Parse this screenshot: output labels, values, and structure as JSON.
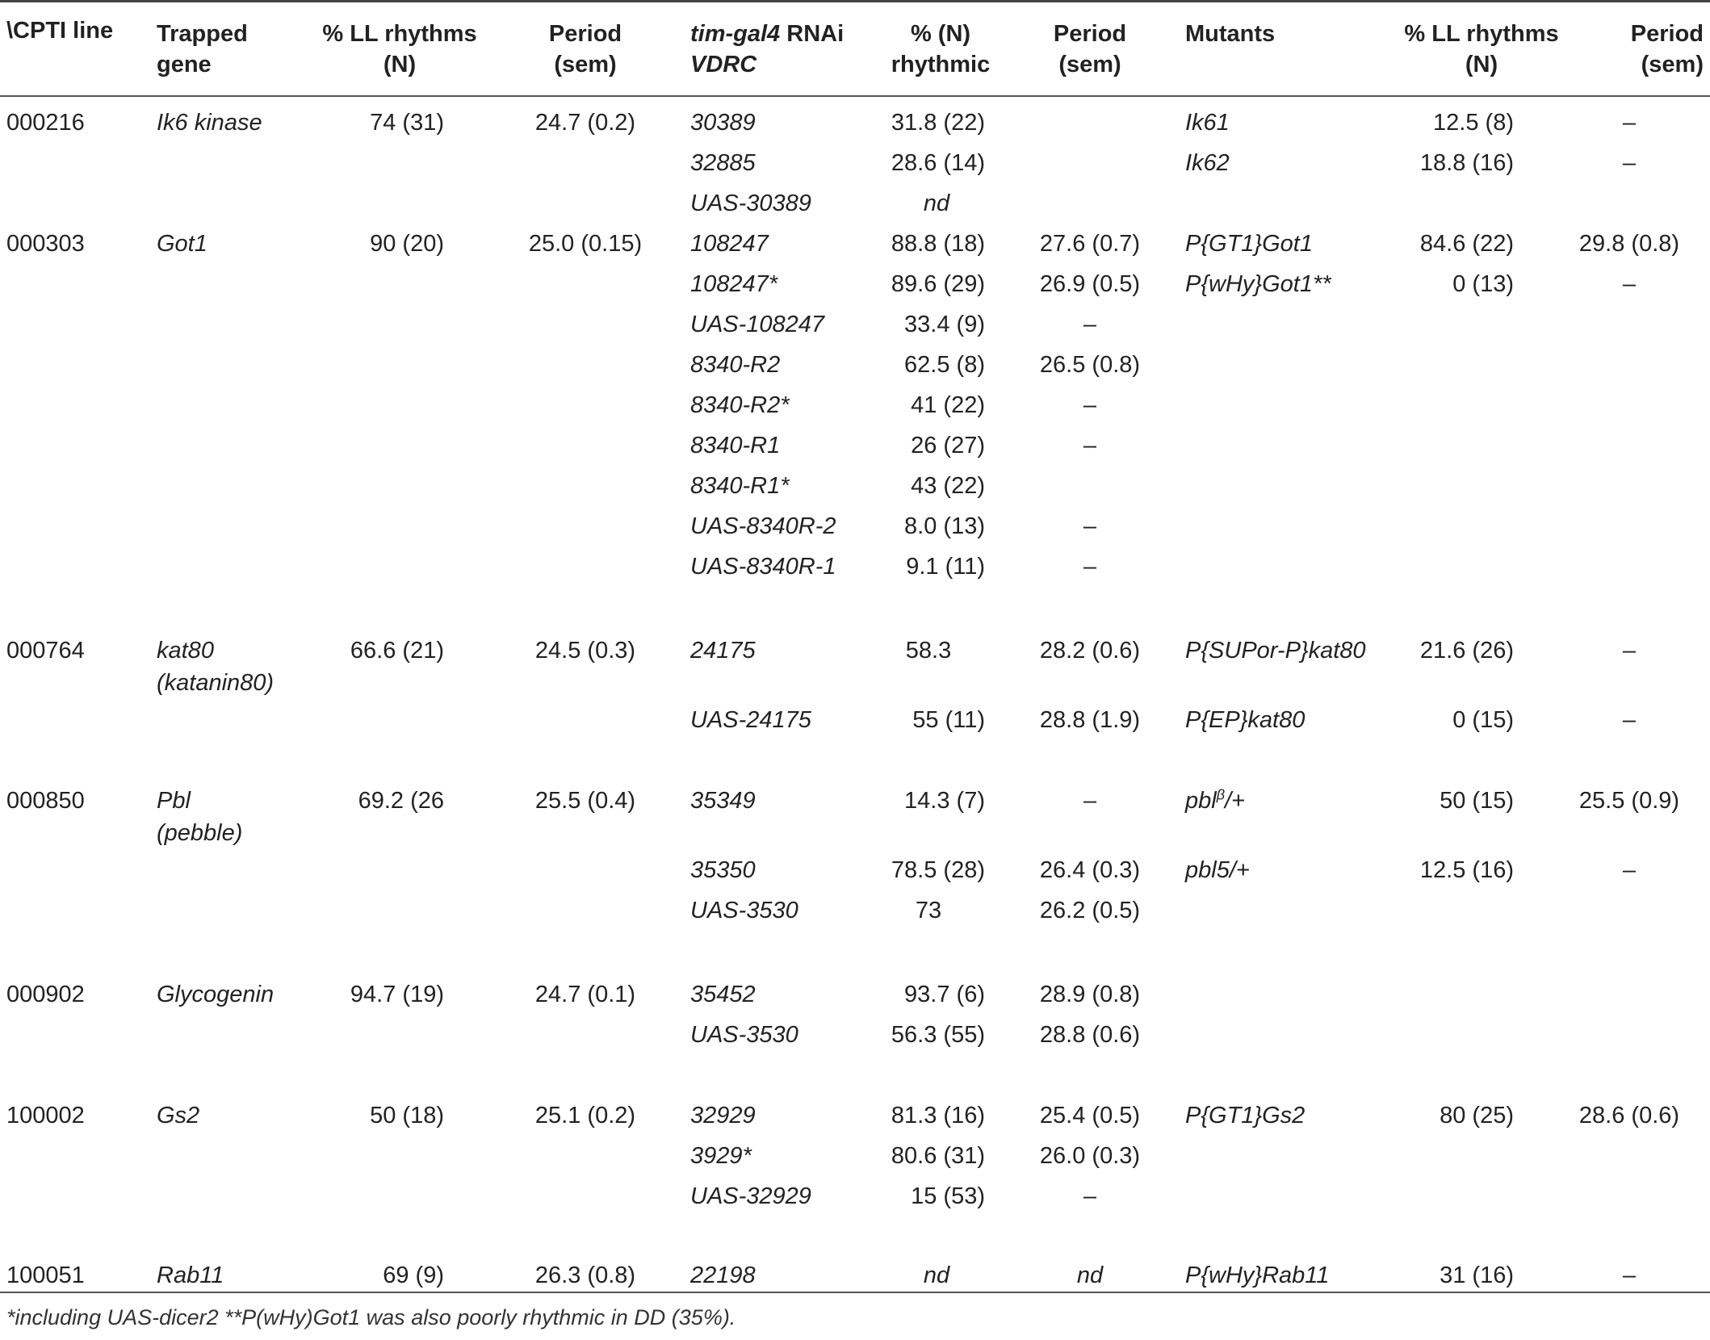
{
  "headers": {
    "cpti": "\\CPTI line",
    "gene_l1": "Trapped",
    "gene_l2": "gene",
    "ll_l1": "% LL rhythms",
    "ll_l2": "(N)",
    "period_l1": "Period",
    "period_l2": "(sem)",
    "rnai_l1_a": "tim-gal4",
    "rnai_l1_b": " RNAi",
    "rnai_l2": "VDRC",
    "rhy_l1": "% (N)",
    "rhy_l2": "rhythmic",
    "rnai_period_l1": "Period",
    "rnai_period_l2": "(sem)",
    "mutants": "Mutants",
    "mut_ll_l1": "% LL rhythms",
    "mut_ll_l2": "(N)",
    "mut_period_l1": "Period",
    "mut_period_l2": "(sem)"
  },
  "rows": [
    {
      "cpti": "000216",
      "gene": "Ik6 kinase",
      "gene2": "",
      "ll": "74 (31)",
      "period": "24.7 (0.2)",
      "rnai": [
        {
          "vdrc": "30389",
          "rhy": "31.8 (22)",
          "per": ""
        },
        {
          "vdrc": "32885",
          "rhy": "28.6 (14)",
          "per": ""
        },
        {
          "vdrc": "UAS-30389",
          "rhy": "nd",
          "per": ""
        }
      ],
      "mutants": [
        {
          "name": "Ik61",
          "ll": "12.5 (8)",
          "per": "–"
        },
        {
          "name": "Ik62",
          "ll": "18.8 (16)",
          "per": "–"
        }
      ]
    },
    {
      "cpti": "000303",
      "gene": "Got1",
      "gene2": "",
      "ll": "90 (20)",
      "period": "25.0 (0.15)",
      "rnai": [
        {
          "vdrc": "108247",
          "rhy": "88.8 (18)",
          "per": "27.6 (0.7)"
        },
        {
          "vdrc": "108247*",
          "rhy": "89.6 (29)",
          "per": "26.9 (0.5)"
        },
        {
          "vdrc": "UAS-108247",
          "rhy": "33.4 (9)",
          "per": "–"
        },
        {
          "vdrc": "8340-R2",
          "rhy": "62.5 (8)",
          "per": "26.5 (0.8)"
        },
        {
          "vdrc": "8340-R2*",
          "rhy": "41 (22)",
          "per": "–"
        },
        {
          "vdrc": "8340-R1",
          "rhy": "26 (27)",
          "per": "–"
        },
        {
          "vdrc": "8340-R1*",
          "rhy": "43 (22)",
          "per": ""
        },
        {
          "vdrc": "UAS-8340R-2",
          "rhy": "8.0 (13)",
          "per": "–"
        },
        {
          "vdrc": "UAS-8340R-1",
          "rhy": "9.1 (11)",
          "per": "–"
        }
      ],
      "mutants": [
        {
          "name": "P{GT1}Got1",
          "ll": "84.6 (22)",
          "per": "29.8 (0.8)"
        },
        {
          "name": "P{wHy}Got1**",
          "ll": "0 (13)",
          "per": "–"
        }
      ]
    },
    {
      "cpti": "000764",
      "gene": "kat80",
      "gene2": "(katanin80)",
      "ll": "66.6 (21)",
      "period": "24.5 (0.3)",
      "rnai": [
        {
          "vdrc": "24175",
          "rhy": "58.3",
          "per": "28.2 (0.6)"
        },
        {
          "vdrc": "UAS-24175",
          "rhy": "55 (11)",
          "per": "28.8 (1.9)"
        }
      ],
      "mutants": [
        {
          "name": "P{SUPor-P}kat80",
          "ll": "21.6 (26)",
          "per": "–"
        },
        {
          "name": "P{EP}kat80",
          "ll": "0 (15)",
          "per": "–"
        }
      ]
    },
    {
      "cpti": "000850",
      "gene": "Pbl",
      "gene2": "(pebble)",
      "ll": "69.2 (26",
      "period": "25.5 (0.4)",
      "rnai": [
        {
          "vdrc": "35349",
          "rhy": "14.3 (7)",
          "per": "–"
        },
        {
          "vdrc": "35350",
          "rhy": "78.5 (28)",
          "per": "26.4 (0.3)"
        },
        {
          "vdrc": "UAS-3530",
          "rhy": "73",
          "per": "26.2 (0.5)"
        }
      ],
      "mutants": [
        {
          "name": "pbl",
          "sup": "β",
          "suffix": "/+",
          "ll": "50 (15)",
          "per": "25.5 (0.9)"
        },
        {
          "name": "pbl5/+",
          "ll": "12.5 (16)",
          "per": "–"
        }
      ]
    },
    {
      "cpti": "000902",
      "gene": "Glycogenin",
      "gene2": "",
      "ll": "94.7 (19)",
      "period": "24.7 (0.1)",
      "rnai": [
        {
          "vdrc": "35452",
          "rhy": "93.7 (6)",
          "per": "28.9 (0.8)"
        },
        {
          "vdrc": "UAS-3530",
          "rhy": "56.3 (55)",
          "per": "28.8 (0.6)"
        }
      ],
      "mutants": []
    },
    {
      "cpti": "100002",
      "gene": "Gs2",
      "gene2": "",
      "ll": "50 (18)",
      "period": "25.1 (0.2)",
      "rnai": [
        {
          "vdrc": "32929",
          "rhy": "81.3 (16)",
          "per": "25.4 (0.5)"
        },
        {
          "vdrc": "3929*",
          "rhy": "80.6 (31)",
          "per": "26.0 (0.3)"
        },
        {
          "vdrc": "UAS-32929",
          "rhy": "15 (53)",
          "per": "–"
        }
      ],
      "mutants": [
        {
          "name": "P{GT1}Gs2",
          "ll": "80 (25)",
          "per": "28.6 (0.6)"
        }
      ]
    },
    {
      "cpti": "100051",
      "gene": "Rab11",
      "gene2": "",
      "ll": "69 (9)",
      "period": "26.3 (0.8)",
      "rnai": [
        {
          "vdrc": "22198",
          "rhy": "nd",
          "per": "nd"
        }
      ],
      "mutants": [
        {
          "name": "P{wHy}Rab11",
          "ll": "31 (16)",
          "per": "–"
        }
      ]
    }
  ],
  "footnote": "*including UAS-dicer2 **P(wHy)Got1 was also poorly rhythmic in DD (35%)."
}
